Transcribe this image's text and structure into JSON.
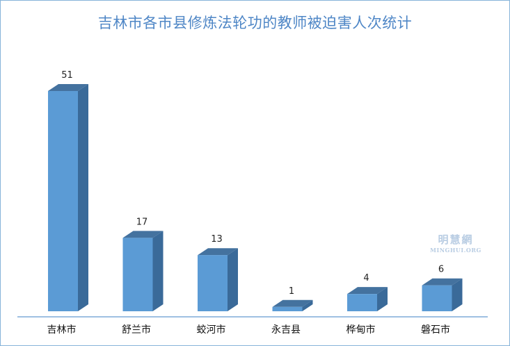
{
  "chart_data": {
    "type": "bar",
    "title": "吉林市各市县修炼法轮功的教师被迫害人次统计",
    "categories": [
      "吉林市",
      "舒兰市",
      "蛟河市",
      "永吉县",
      "桦甸市",
      "磐石市"
    ],
    "values": [
      51,
      17,
      13,
      1,
      4,
      6
    ],
    "xlabel": "",
    "ylabel": "",
    "ylim": [
      0,
      56
    ],
    "grid": false,
    "style": "3d-column",
    "colors": {
      "front": "#5b9bd5",
      "side": "#3a6a99",
      "top": "#44729f",
      "title": "#4e86c6",
      "axis": "#9ec0e2"
    }
  },
  "watermark": {
    "main": "明慧網",
    "sub": "MINGHUI.ORG"
  }
}
